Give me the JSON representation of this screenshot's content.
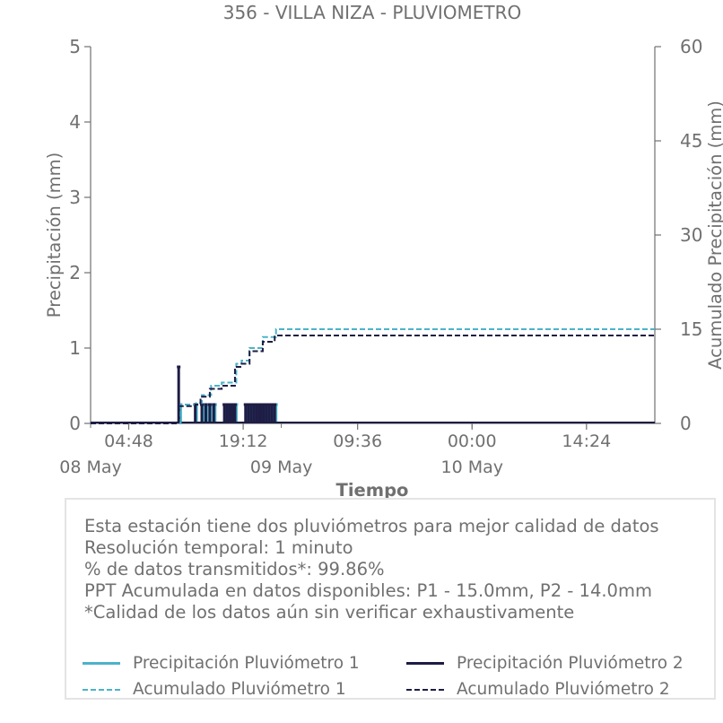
{
  "chart_data": {
    "type": "line",
    "title": "356 - VILLA NIZA - PLUVIOMETRO",
    "xlabel": "Tiempo",
    "ylabel": "Precipitación (mm)",
    "y2label": "Acumulado Precipitación (mm)",
    "ylim": [
      0,
      5
    ],
    "y2lim": [
      0,
      60
    ],
    "yticks": [
      "0",
      "1",
      "2",
      "3",
      "4",
      "5"
    ],
    "y2ticks": [
      "0",
      "15",
      "30",
      "45",
      "60"
    ],
    "xlim": [
      "2024-05-08T00:00",
      "2024-05-10T23:00"
    ],
    "xticks": [
      {
        "t": "2024-05-08T04:48",
        "label": "04:48"
      },
      {
        "t": "2024-05-08T19:12",
        "label": "19:12"
      },
      {
        "t": "2024-05-09T09:36",
        "label": "09:36"
      },
      {
        "t": "2024-05-10T00:00",
        "label": "00:00"
      },
      {
        "t": "2024-05-10T14:24",
        "label": "14:24"
      }
    ],
    "date_labels": [
      {
        "t": "2024-05-08T00:00",
        "label": "08 May"
      },
      {
        "t": "2024-05-09T00:00",
        "label": "09 May"
      },
      {
        "t": "2024-05-10T00:00",
        "label": "10 May"
      }
    ],
    "grid": false,
    "series": [
      {
        "name": "Precipitación Pluviómetro 1",
        "style": "solid",
        "color": "#4bb3c9",
        "axis": "left",
        "bars": [
          {
            "t": "2024-05-08T11:20",
            "v": 0.25
          },
          {
            "t": "2024-05-08T13:20",
            "v": 0.25
          },
          {
            "t": "2024-05-08T14:10",
            "v": 0.25
          },
          {
            "t": "2024-05-08T14:40",
            "v": 0.25
          },
          {
            "t": "2024-05-08T15:10",
            "v": 0.25
          },
          {
            "t": "2024-05-08T15:40",
            "v": 0.25
          },
          {
            "t": "2024-05-08T17:00",
            "v": 0.25
          },
          {
            "t": "2024-05-08T17:20",
            "v": 0.25
          },
          {
            "t": "2024-05-08T17:40",
            "v": 0.25
          },
          {
            "t": "2024-05-08T18:00",
            "v": 0.25
          },
          {
            "t": "2024-05-08T18:20",
            "v": 0.25
          },
          {
            "t": "2024-05-08T19:40",
            "v": 0.25
          },
          {
            "t": "2024-05-08T20:00",
            "v": 0.25
          },
          {
            "t": "2024-05-08T20:20",
            "v": 0.25
          },
          {
            "t": "2024-05-08T20:40",
            "v": 0.25
          },
          {
            "t": "2024-05-08T21:00",
            "v": 0.25
          },
          {
            "t": "2024-05-08T21:20",
            "v": 0.25
          },
          {
            "t": "2024-05-08T21:40",
            "v": 0.25
          },
          {
            "t": "2024-05-08T22:00",
            "v": 0.25
          },
          {
            "t": "2024-05-08T22:20",
            "v": 0.25
          },
          {
            "t": "2024-05-08T22:40",
            "v": 0.25
          },
          {
            "t": "2024-05-08T23:00",
            "v": 0.25
          },
          {
            "t": "2024-05-08T23:20",
            "v": 0.25
          }
        ]
      },
      {
        "name": "Precipitación Pluviómetro 2",
        "style": "solid",
        "color": "#1e1d45",
        "axis": "left",
        "bars": [
          {
            "t": "2024-05-08T11:05",
            "v": 0.75
          },
          {
            "t": "2024-05-08T13:10",
            "v": 0.25
          },
          {
            "t": "2024-05-08T14:00",
            "v": 0.25
          },
          {
            "t": "2024-05-08T14:30",
            "v": 0.25
          },
          {
            "t": "2024-05-08T15:00",
            "v": 0.25
          },
          {
            "t": "2024-05-08T15:30",
            "v": 0.25
          },
          {
            "t": "2024-05-08T16:50",
            "v": 0.25
          },
          {
            "t": "2024-05-08T17:10",
            "v": 0.25
          },
          {
            "t": "2024-05-08T17:30",
            "v": 0.25
          },
          {
            "t": "2024-05-08T17:50",
            "v": 0.25
          },
          {
            "t": "2024-05-08T18:10",
            "v": 0.25
          },
          {
            "t": "2024-05-08T19:30",
            "v": 0.25
          },
          {
            "t": "2024-05-08T19:50",
            "v": 0.25
          },
          {
            "t": "2024-05-08T20:10",
            "v": 0.25
          },
          {
            "t": "2024-05-08T20:30",
            "v": 0.25
          },
          {
            "t": "2024-05-08T20:50",
            "v": 0.25
          },
          {
            "t": "2024-05-08T21:10",
            "v": 0.25
          },
          {
            "t": "2024-05-08T21:30",
            "v": 0.25
          },
          {
            "t": "2024-05-08T21:50",
            "v": 0.25
          },
          {
            "t": "2024-05-08T22:10",
            "v": 0.25
          },
          {
            "t": "2024-05-08T22:30",
            "v": 0.25
          },
          {
            "t": "2024-05-08T22:50",
            "v": 0.25
          },
          {
            "t": "2024-05-08T23:10",
            "v": 0.25
          }
        ]
      },
      {
        "name": "Acumulado Pluviómetro 1",
        "style": "dashed",
        "color": "#4bb3c9",
        "axis": "right",
        "points": [
          {
            "t": "2024-05-08T00:00",
            "v": 0
          },
          {
            "t": "2024-05-08T11:00",
            "v": 0
          },
          {
            "t": "2024-05-08T11:20",
            "v": 3.0
          },
          {
            "t": "2024-05-08T13:20",
            "v": 3.25
          },
          {
            "t": "2024-05-08T14:00",
            "v": 4.5
          },
          {
            "t": "2024-05-08T15:10",
            "v": 6.0
          },
          {
            "t": "2024-05-08T16:30",
            "v": 6.5
          },
          {
            "t": "2024-05-08T18:20",
            "v": 9.5
          },
          {
            "t": "2024-05-08T19:00",
            "v": 10.0
          },
          {
            "t": "2024-05-08T20:00",
            "v": 12.0
          },
          {
            "t": "2024-05-08T21:40",
            "v": 13.75
          },
          {
            "t": "2024-05-08T23:20",
            "v": 15.0
          },
          {
            "t": "2024-05-10T23:00",
            "v": 15.0
          }
        ]
      },
      {
        "name": "Acumulado Pluviómetro 2",
        "style": "dashed",
        "color": "#1e1d45",
        "axis": "right",
        "points": [
          {
            "t": "2024-05-08T00:00",
            "v": 0
          },
          {
            "t": "2024-05-08T11:00",
            "v": 0
          },
          {
            "t": "2024-05-08T11:05",
            "v": 2.75
          },
          {
            "t": "2024-05-08T13:10",
            "v": 3.0
          },
          {
            "t": "2024-05-08T13:50",
            "v": 4.25
          },
          {
            "t": "2024-05-08T15:00",
            "v": 5.5
          },
          {
            "t": "2024-05-08T16:30",
            "v": 6.0
          },
          {
            "t": "2024-05-08T18:10",
            "v": 9.0
          },
          {
            "t": "2024-05-08T19:00",
            "v": 9.5
          },
          {
            "t": "2024-05-08T20:00",
            "v": 11.5
          },
          {
            "t": "2024-05-08T21:40",
            "v": 13.0
          },
          {
            "t": "2024-05-08T23:10",
            "v": 14.0
          },
          {
            "t": "2024-05-10T23:00",
            "v": 14.0
          }
        ]
      }
    ]
  },
  "info": {
    "lines": [
      "Esta estación tiene dos pluviómetros para mejor calidad de datos",
      "Resolución temporal: 1 minuto",
      "% de datos transmitidos*: 99.86%",
      "PPT Acumulada en datos disponibles: P1 - 15.0mm, P2 - 14.0mm",
      "*Calidad de los datos aún sin verificar exhaustivamente"
    ]
  },
  "legend": {
    "items": [
      {
        "label": "Precipitación Pluviómetro 1",
        "style": "solid",
        "color": "#4bb3c9"
      },
      {
        "label": "Precipitación Pluviómetro 2",
        "style": "solid",
        "color": "#1e1d45"
      },
      {
        "label": "Acumulado Pluviómetro 1",
        "style": "dashed",
        "color": "#4bb3c9"
      },
      {
        "label": "Acumulado Pluviómetro 2",
        "style": "dashed",
        "color": "#1e1d45"
      }
    ]
  },
  "colors": {
    "axis": "#707070",
    "series1": "#4bb3c9",
    "series2": "#1e1d45"
  }
}
